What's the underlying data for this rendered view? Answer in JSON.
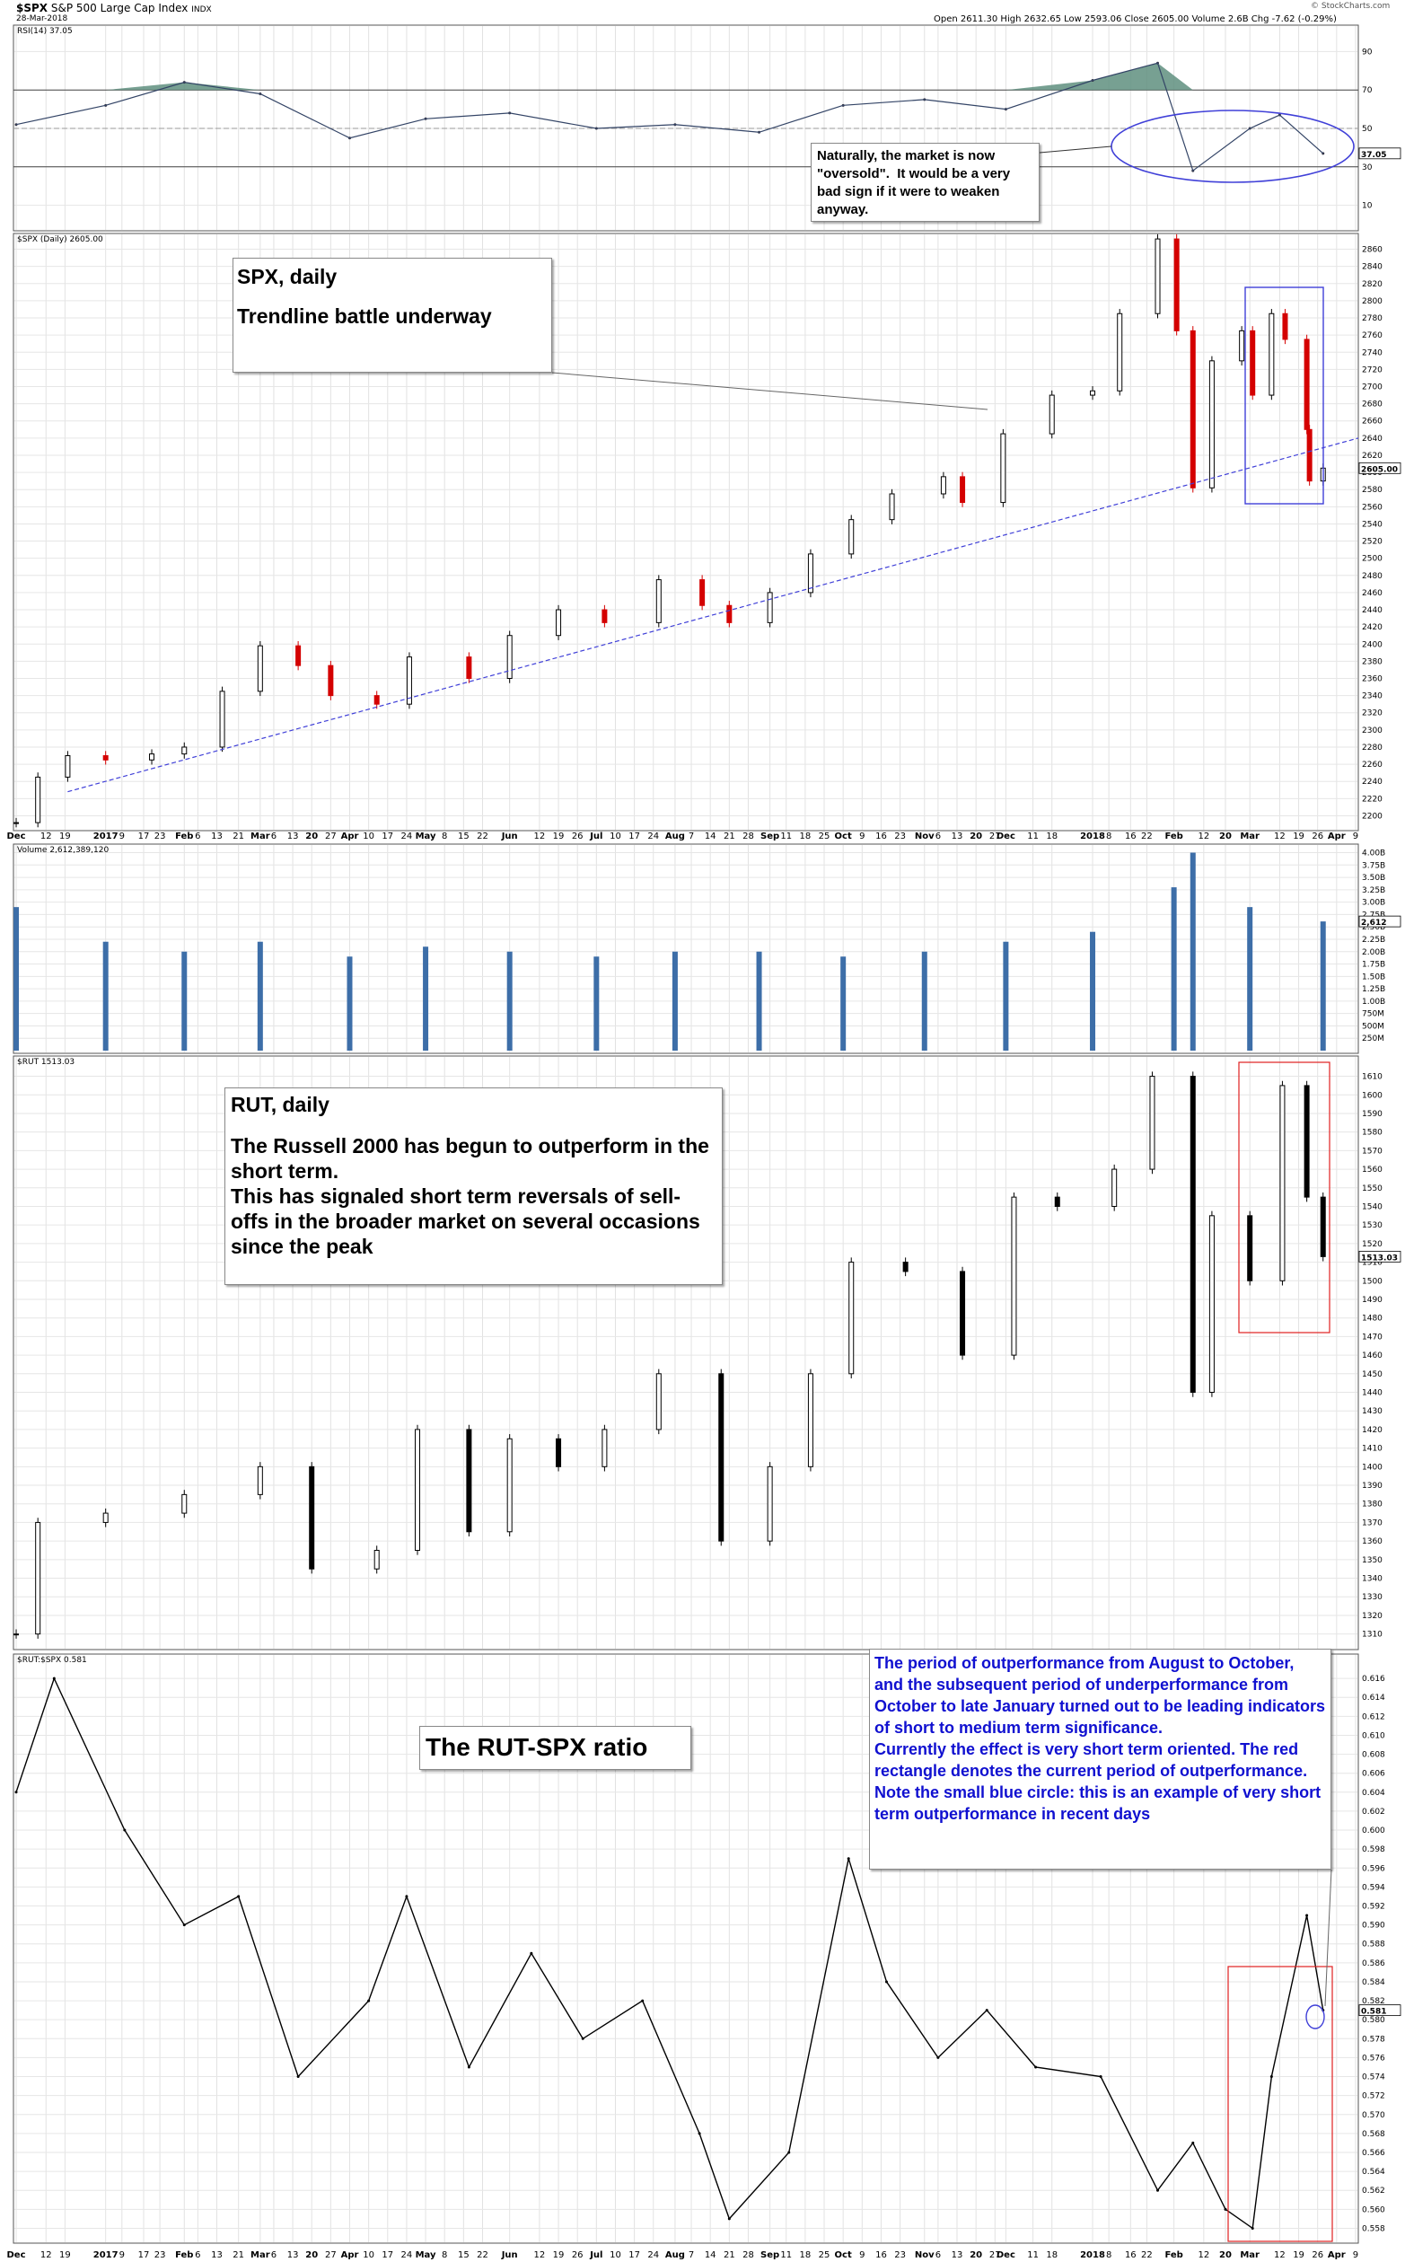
{
  "header": {
    "symbol": "$SPX",
    "name": "S&P 500 Large Cap Index",
    "exchange": "INDX",
    "date": "28-Mar-2018",
    "quote": "Open 2611.30  High 2632.65  Low 2593.06  Close 2605.00  Volume 2.6B  Chg -7.62 (-0.29%)",
    "quote_trend": "down",
    "brand": "© StockCharts.com"
  },
  "colors": {
    "up_candle": "#000000",
    "down_candle": "#d40000",
    "rsi_fill": "#5f8f7f",
    "volume_bar": "#3d6ea8",
    "trendline": "#4040d8",
    "annotation_blue": "#1010d0",
    "annotation_red": "#e02020"
  },
  "xaxis": {
    "labels": [
      "Dec",
      "12",
      "19",
      "2017",
      "9",
      "17",
      "23",
      "Feb",
      "6",
      "13",
      "21",
      "Mar",
      "6",
      "13",
      "20",
      "27",
      "Apr",
      "10",
      "17",
      "24",
      "May",
      "8",
      "15",
      "22",
      "Jun",
      "12",
      "19",
      "26",
      "Jul",
      "10",
      "17",
      "24",
      "Aug",
      "7",
      "14",
      "21",
      "28",
      "Sep",
      "11",
      "18",
      "25",
      "Oct",
      "9",
      "16",
      "23",
      "Nov",
      "6",
      "13",
      "20",
      "27",
      "Dec",
      "11",
      "18",
      "2018",
      "8",
      "16",
      "22",
      "Feb",
      "12",
      "20",
      "Mar",
      "12",
      "19",
      "26",
      "Apr",
      "9"
    ]
  },
  "annotations": {
    "rsi_note": "Naturally, the market is now \"oversold\".  It would be a very bad sign if it were to weaken anyway.",
    "spx_title": "SPX, daily",
    "spx_note": "Trendline battle underway",
    "rut_title": "RUT, daily",
    "rut_note": "The Russell 2000 has begun to outperform in the short term.\nThis has signaled short term reversals of sell-offs in the broader market on several occasions since the peak",
    "ratio_title": "The RUT-SPX ratio",
    "ratio_note": "The period of outperformance from August to October, and the subsequent period of underperformance from October to late January turned out to be leading indicators of short to medium term significance.\nCurrently the effect is very short term oriented. The red rectangle denotes the current period of outperformance. Note the small blue circle: this is an example of very short term outperformance in recent days"
  },
  "chart_data": [
    {
      "type": "line",
      "title": "RSI(14) 37.05",
      "ylim": [
        0,
        100
      ],
      "yticks": [
        10,
        30,
        50,
        70,
        90
      ],
      "reference_lines": [
        30,
        70
      ],
      "last_value_label": "37.05",
      "x": [
        "2016-12-01",
        "2017-01-03",
        "2017-02-01",
        "2017-03-01",
        "2017-04-03",
        "2017-05-01",
        "2017-06-01",
        "2017-07-03",
        "2017-08-01",
        "2017-09-01",
        "2017-10-02",
        "2017-11-01",
        "2017-12-01",
        "2018-01-02",
        "2018-01-26",
        "2018-02-08",
        "2018-03-01",
        "2018-03-12",
        "2018-03-28"
      ],
      "values": [
        52,
        62,
        74,
        68,
        45,
        55,
        58,
        50,
        52,
        48,
        62,
        65,
        60,
        75,
        84,
        28,
        50,
        57,
        37
      ]
    },
    {
      "type": "candlestick",
      "title": "$SPX (Daily) 2605.00",
      "ylim": [
        2190,
        2870
      ],
      "yticks": [
        2200,
        2220,
        2240,
        2260,
        2280,
        2300,
        2320,
        2340,
        2360,
        2380,
        2400,
        2420,
        2440,
        2460,
        2480,
        2500,
        2520,
        2540,
        2560,
        2580,
        2600,
        2620,
        2640,
        2660,
        2680,
        2700,
        2720,
        2740,
        2760,
        2780,
        2800,
        2820,
        2840,
        2860
      ],
      "last_value_label": "2605.00",
      "x": [
        "2016-12-01",
        "2016-12-09",
        "2016-12-20",
        "2017-01-03",
        "2017-01-20",
        "2017-02-01",
        "2017-02-15",
        "2017-03-01",
        "2017-03-15",
        "2017-03-27",
        "2017-04-13",
        "2017-04-25",
        "2017-05-17",
        "2017-06-01",
        "2017-06-19",
        "2017-07-06",
        "2017-07-26",
        "2017-08-11",
        "2017-08-21",
        "2017-09-05",
        "2017-09-20",
        "2017-10-05",
        "2017-10-20",
        "2017-11-08",
        "2017-11-15",
        "2017-11-30",
        "2017-12-18",
        "2018-01-02",
        "2018-01-12",
        "2018-01-26",
        "2018-02-02",
        "2018-02-08",
        "2018-02-15",
        "2018-02-26",
        "2018-03-02",
        "2018-03-09",
        "2018-03-14",
        "2018-03-22",
        "2018-03-23",
        "2018-03-28"
      ],
      "values": [
        2192,
        2245,
        2270,
        2265,
        2272,
        2280,
        2345,
        2398,
        2375,
        2340,
        2330,
        2385,
        2360,
        2410,
        2440,
        2425,
        2475,
        2445,
        2425,
        2460,
        2505,
        2545,
        2575,
        2595,
        2565,
        2645,
        2690,
        2695,
        2785,
        2872,
        2765,
        2582,
        2730,
        2765,
        2690,
        2785,
        2755,
        2650,
        2590,
        2605
      ]
    },
    {
      "type": "bar",
      "title": "Volume 2,612,389,120",
      "ylim": [
        0,
        4.1
      ],
      "yticks": [
        "250M",
        "500M",
        "750M",
        "1.00B",
        "1.25B",
        "1.50B",
        "1.75B",
        "2.00B",
        "2.25B",
        "2.50B",
        "2.75B",
        "3.00B",
        "3.25B",
        "3.50B",
        "3.75B",
        "4.00B"
      ],
      "last_value_label": "2,612,389,120",
      "x": [
        "2016-12-01",
        "2017-01-03",
        "2017-02-01",
        "2017-03-01",
        "2017-04-03",
        "2017-05-01",
        "2017-06-01",
        "2017-07-03",
        "2017-08-01",
        "2017-09-01",
        "2017-10-02",
        "2017-11-01",
        "2017-12-01",
        "2018-01-02",
        "2018-02-01",
        "2018-02-08",
        "2018-03-01",
        "2018-03-28"
      ],
      "values": [
        2.9,
        2.2,
        2.0,
        2.2,
        1.9,
        2.1,
        2.0,
        1.9,
        2.0,
        2.0,
        1.9,
        2.0,
        2.2,
        2.4,
        3.3,
        4.0,
        2.9,
        2.61
      ]
    },
    {
      "type": "candlestick",
      "title": "$RUT 1513.03",
      "ylim": [
        1305,
        1618
      ],
      "yticks": [
        1310,
        1320,
        1330,
        1340,
        1350,
        1360,
        1370,
        1380,
        1390,
        1400,
        1410,
        1420,
        1430,
        1440,
        1450,
        1460,
        1470,
        1480,
        1490,
        1500,
        1510,
        1520,
        1530,
        1540,
        1550,
        1560,
        1570,
        1580,
        1590,
        1600,
        1610
      ],
      "last_value_label": "1513.03",
      "x": [
        "2016-12-01",
        "2016-12-09",
        "2017-01-03",
        "2017-02-01",
        "2017-03-01",
        "2017-03-20",
        "2017-04-13",
        "2017-04-28",
        "2017-05-17",
        "2017-06-01",
        "2017-06-19",
        "2017-07-06",
        "2017-07-26",
        "2017-08-18",
        "2017-09-05",
        "2017-09-20",
        "2017-10-05",
        "2017-10-25",
        "2017-11-15",
        "2017-12-04",
        "2017-12-20",
        "2018-01-10",
        "2018-01-24",
        "2018-02-08",
        "2018-02-15",
        "2018-03-01",
        "2018-03-13",
        "2018-03-22",
        "2018-03-28"
      ],
      "values": [
        1310,
        1370,
        1375,
        1385,
        1400,
        1345,
        1355,
        1420,
        1365,
        1415,
        1400,
        1420,
        1450,
        1360,
        1400,
        1450,
        1510,
        1505,
        1460,
        1545,
        1540,
        1560,
        1610,
        1440,
        1535,
        1500,
        1605,
        1545,
        1513
      ]
    },
    {
      "type": "line",
      "title": "$RUT:$SPX 0.581",
      "ylim": [
        0.557,
        0.618
      ],
      "yticks": [
        0.558,
        0.56,
        0.562,
        0.564,
        0.566,
        0.568,
        0.57,
        0.572,
        0.574,
        0.576,
        0.578,
        0.58,
        0.582,
        0.584,
        0.586,
        0.588,
        0.59,
        0.592,
        0.594,
        0.596,
        0.598,
        0.6,
        0.602,
        0.604,
        0.606,
        0.608,
        0.61,
        0.612,
        0.614,
        0.616
      ],
      "last_value_label": "0.581",
      "x": [
        "2016-12-01",
        "2016-12-15",
        "2017-01-10",
        "2017-02-01",
        "2017-02-21",
        "2017-03-15",
        "2017-04-10",
        "2017-04-24",
        "2017-05-17",
        "2017-06-09",
        "2017-06-28",
        "2017-07-20",
        "2017-08-10",
        "2017-08-21",
        "2017-09-12",
        "2017-10-04",
        "2017-10-18",
        "2017-11-06",
        "2017-11-24",
        "2017-12-12",
        "2018-01-05",
        "2018-01-26",
        "2018-02-08",
        "2018-02-20",
        "2018-03-02",
        "2018-03-09",
        "2018-03-22",
        "2018-03-28"
      ],
      "values": [
        0.604,
        0.616,
        0.6,
        0.59,
        0.593,
        0.574,
        0.582,
        0.593,
        0.575,
        0.587,
        0.578,
        0.582,
        0.568,
        0.559,
        0.566,
        0.597,
        0.584,
        0.576,
        0.581,
        0.575,
        0.574,
        0.562,
        0.567,
        0.56,
        0.558,
        0.574,
        0.591,
        0.581
      ]
    }
  ]
}
